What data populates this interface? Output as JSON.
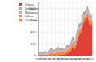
{
  "chart_data": {
    "type": "area",
    "stacked": true,
    "grid": true,
    "legend": "top-left",
    "x": [
      1962,
      1964,
      1966,
      1968,
      1970,
      1972,
      1974,
      1976,
      1978,
      1980,
      1982,
      1984,
      1986,
      1988,
      1990,
      1992,
      1994,
      1996,
      1998,
      2000,
      2002,
      2004,
      2006,
      2008,
      2010,
      2012
    ],
    "xlim": [
      1962,
      2012
    ],
    "xticks": [
      1962,
      1966,
      1970,
      1974,
      1978,
      1982,
      1986,
      1990,
      1994,
      1998,
      2002,
      2006,
      2010
    ],
    "ylim": [
      0,
      1800
    ],
    "yticks": [
      0,
      400,
      800,
      1200,
      1600
    ],
    "series": [
      {
        "name": "China",
        "color": "#e0403a",
        "values": [
          0,
          0,
          0,
          0,
          0,
          0,
          0,
          0,
          0,
          10,
          20,
          30,
          40,
          60,
          100,
          150,
          300,
          200,
          500,
          700,
          800,
          1100,
          1200,
          1300,
          1000,
          1100
        ]
      },
      {
        "name": "Thailand",
        "color": "#f08a3c",
        "values": [
          20,
          40,
          30,
          50,
          30,
          60,
          100,
          60,
          80,
          120,
          80,
          100,
          60,
          120,
          100,
          120,
          150,
          100,
          150,
          150,
          120,
          150,
          120,
          150,
          150,
          120
        ]
      },
      {
        "name": "Malaysia",
        "color": "#f4a6a0",
        "values": [
          30,
          50,
          40,
          60,
          40,
          70,
          80,
          50,
          60,
          90,
          60,
          70,
          50,
          80,
          70,
          80,
          100,
          70,
          100,
          100,
          90,
          100,
          80,
          100,
          80,
          80
        ]
      },
      {
        "name": "Indonesia",
        "color": "#8fb3d9",
        "values": [
          10,
          10,
          10,
          20,
          10,
          20,
          30,
          20,
          30,
          40,
          30,
          30,
          20,
          40,
          30,
          30,
          40,
          30,
          40,
          50,
          40,
          50,
          40,
          40,
          40,
          40
        ]
      },
      {
        "name": "Other",
        "color": "#a0a0a0",
        "values": [
          20,
          30,
          20,
          30,
          20,
          40,
          50,
          30,
          40,
          50,
          40,
          40,
          30,
          50,
          40,
          40,
          60,
          40,
          60,
          80,
          60,
          80,
          60,
          80,
          60,
          60
        ]
      }
    ]
  }
}
